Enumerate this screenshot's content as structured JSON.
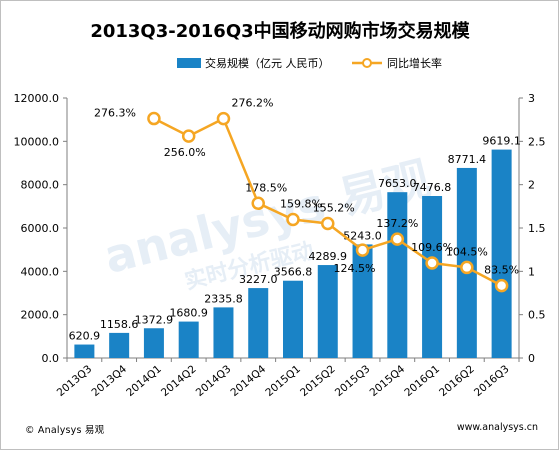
{
  "chart_data": {
    "type": "bar",
    "title": "2013Q3-2016Q3中国移动网购市场交易规模",
    "categories": [
      "2013Q3",
      "2013Q4",
      "2014Q1",
      "2014Q2",
      "2014Q3",
      "2014Q4",
      "2015Q1",
      "2015Q2",
      "2015Q3",
      "2015Q4",
      "2016Q1",
      "2016Q2",
      "2016Q3"
    ],
    "series": [
      {
        "name": "交易规模（亿元 人民币）",
        "kind": "bar",
        "axis": "left",
        "color": "#1a83c6",
        "values": [
          620.9,
          1158.6,
          1372.9,
          1680.9,
          2335.8,
          3227.0,
          3566.8,
          4289.9,
          5243.0,
          7653.0,
          7476.8,
          8771.4,
          9619.1
        ],
        "labels": [
          "620.9",
          "1158.6",
          "1372.9",
          "1680.9",
          "2335.8",
          "3227.0",
          "3566.8",
          "4289.9",
          "5243.0",
          "7653.0",
          "7476.8",
          "8771.4",
          "9619.1"
        ]
      },
      {
        "name": "同比增长率",
        "kind": "line",
        "axis": "right",
        "color": "#f5a623",
        "values": [
          null,
          null,
          2.763,
          2.56,
          2.762,
          1.785,
          1.598,
          1.552,
          1.245,
          1.372,
          1.096,
          1.045,
          0.835
        ],
        "labels": [
          "",
          "",
          "276.3%",
          "256.0%",
          "276.2%",
          "178.5%",
          "159.8%",
          "155.2%",
          "124.5%",
          "137.2%",
          "109.6%",
          "104.5%",
          "83.5%"
        ]
      }
    ],
    "ylim_left": [
      0,
      12000
    ],
    "yticks_left": [
      "0.0",
      "2000.0",
      "4000.0",
      "6000.0",
      "8000.0",
      "10000.0",
      "12000.0"
    ],
    "ylim_right": [
      0,
      3
    ],
    "yticks_right": [
      "0",
      "0.5",
      "1",
      "1.5",
      "2",
      "2.5",
      "3"
    ],
    "legend_position": "top"
  },
  "footer": {
    "source": "© Analysys 易观",
    "website": "www.analysys.cn"
  },
  "watermark": {
    "text": "analysys 易观",
    "subtext": "实时分析驱动"
  },
  "colors": {
    "bar": "#1a83c6",
    "line": "#f5a623",
    "axis": "#7f7f7f",
    "watermark": "#e6eef6"
  }
}
